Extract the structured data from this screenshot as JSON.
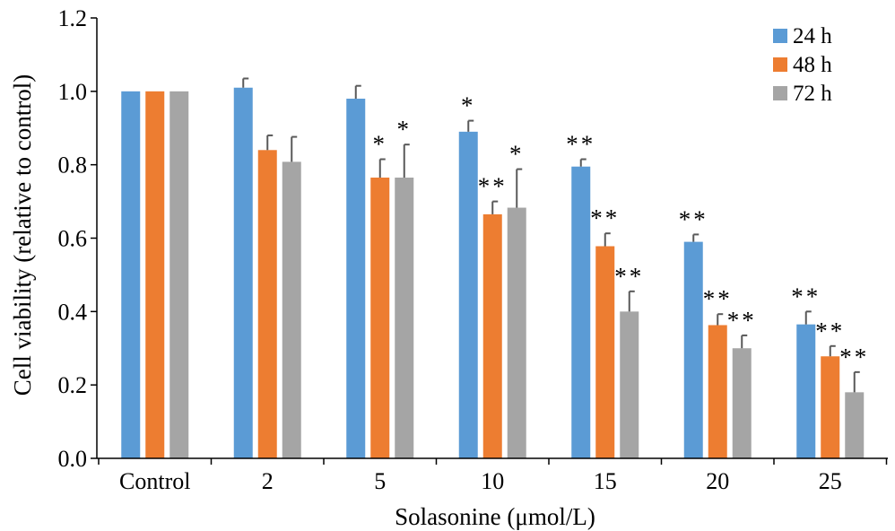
{
  "chart_data": {
    "type": "bar",
    "xlabel": "Solasonine (μmol/L)",
    "ylabel": "Cell viability (relative to control)",
    "ylim": [
      0,
      1.2
    ],
    "yticks": [
      "0.0",
      "0.2",
      "0.4",
      "0.6",
      "0.8",
      "1.0",
      "1.2"
    ],
    "grid": false,
    "legend_position": "top-right",
    "categories": [
      "Control",
      "2",
      "5",
      "10",
      "15",
      "20",
      "25"
    ],
    "series": [
      {
        "name": "24 h",
        "color": "#5B9BD5",
        "values": [
          1.0,
          1.01,
          0.98,
          0.89,
          0.795,
          0.59,
          0.365
        ],
        "errors": [
          0.0,
          0.025,
          0.035,
          0.03,
          0.02,
          0.02,
          0.035
        ],
        "annotations": [
          "",
          "",
          "",
          "*",
          "**",
          "**",
          "**"
        ]
      },
      {
        "name": "48 h",
        "color": "#ED7D31",
        "values": [
          1.0,
          0.84,
          0.765,
          0.665,
          0.578,
          0.363,
          0.278
        ],
        "errors": [
          0.0,
          0.04,
          0.05,
          0.035,
          0.035,
          0.03,
          0.028
        ],
        "annotations": [
          "",
          "",
          "*",
          "**",
          "**",
          "**",
          "**"
        ]
      },
      {
        "name": "72 h",
        "color": "#A5A5A5",
        "values": [
          1.0,
          0.808,
          0.765,
          0.683,
          0.4,
          0.3,
          0.18
        ],
        "errors": [
          0.0,
          0.068,
          0.09,
          0.105,
          0.055,
          0.035,
          0.055
        ],
        "annotations": [
          "",
          "",
          "*",
          "*",
          "**",
          "**",
          "**"
        ]
      }
    ]
  }
}
